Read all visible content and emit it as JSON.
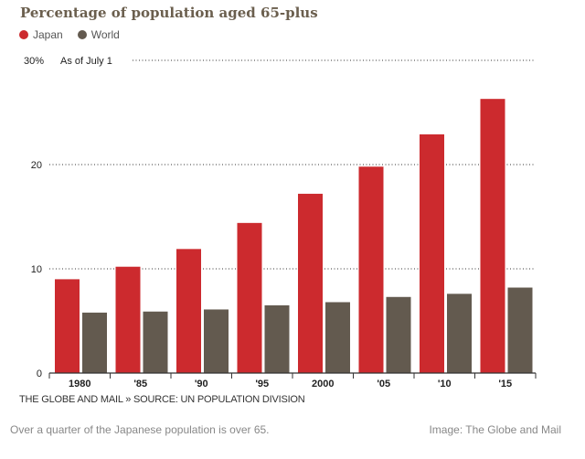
{
  "chart_data": {
    "type": "bar",
    "title": "Percentage of population aged 65-plus",
    "annotation": "As of July 1",
    "categories": [
      "1980",
      "'85",
      "'90",
      "'95",
      "2000",
      "'05",
      "'10",
      "'15"
    ],
    "series": [
      {
        "name": "Japan",
        "color": "#cc2a2e",
        "values": [
          9.0,
          10.2,
          11.9,
          14.4,
          17.2,
          19.8,
          22.9,
          26.3
        ]
      },
      {
        "name": "World",
        "color": "#635a4f",
        "values": [
          5.8,
          5.9,
          6.1,
          6.5,
          6.8,
          7.3,
          7.6,
          8.2
        ]
      }
    ],
    "yticks": [
      "0",
      "10",
      "20",
      "30%"
    ],
    "ytick_values": [
      0,
      10,
      20,
      30
    ],
    "ylim": [
      0,
      30
    ],
    "grid": "dotted horizontal",
    "legend": "top-left"
  },
  "source": "THE GLOBE AND MAIL » SOURCE: UN POPULATION DIVISION",
  "caption": "Over a quarter of the Japanese population is over 65.",
  "credit": "Image: The Globe and Mail"
}
